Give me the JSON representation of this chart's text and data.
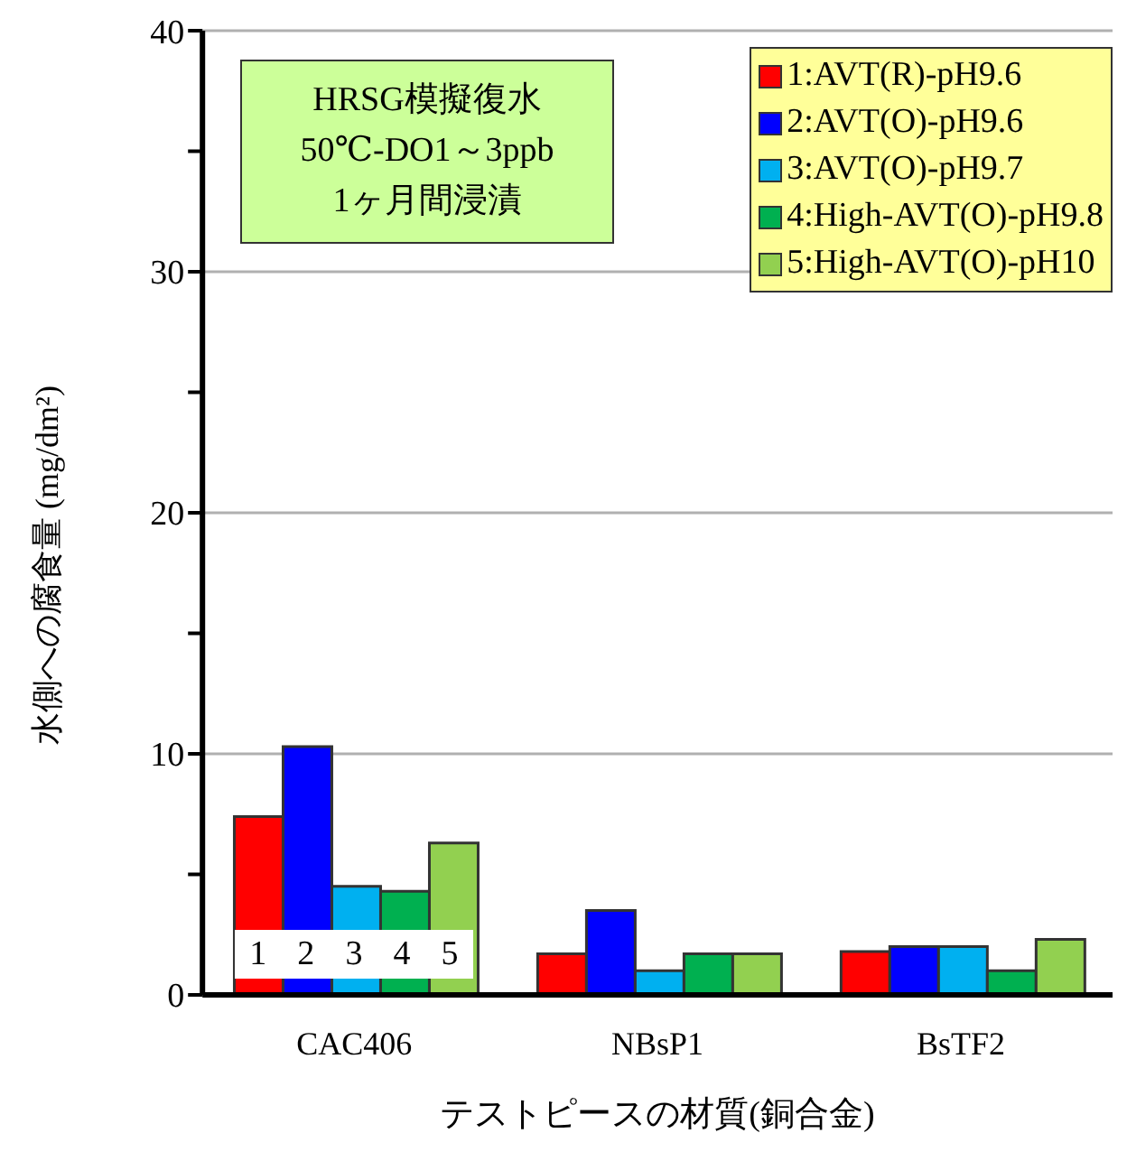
{
  "chart_data": {
    "type": "bar",
    "xlabel": "テストピースの材質(銅合金)",
    "ylabel": "水側への腐食量 (mg/dm²)",
    "categories": [
      "CAC406",
      "NBsP1",
      "BsTF2"
    ],
    "series": [
      {
        "name": "1:AVT(R)-pH9.6",
        "color": "#ff0000",
        "values": [
          7.4,
          1.7,
          1.8
        ]
      },
      {
        "name": "2:AVT(O)-pH9.6",
        "color": "#0000ff",
        "values": [
          10.3,
          3.5,
          2.0
        ]
      },
      {
        "name": "3:AVT(O)-pH9.7",
        "color": "#00b0f0",
        "values": [
          4.5,
          1.0,
          2.0
        ]
      },
      {
        "name": "4:High-AVT(O)-pH9.8",
        "color": "#00b050",
        "values": [
          4.3,
          1.7,
          1.0
        ]
      },
      {
        "name": "5:High-AVT(O)-pH10",
        "color": "#92d050",
        "values": [
          6.3,
          1.7,
          2.3
        ]
      }
    ],
    "ylim": [
      0,
      40
    ],
    "yticks": [
      0,
      {
        "value": 5,
        "label": null
      },
      10,
      {
        "value": 15,
        "label": null
      },
      20,
      {
        "value": 25,
        "label": null
      },
      30,
      {
        "value": 35,
        "label": null
      },
      40
    ],
    "grid": "y",
    "legend": "top right",
    "annotations": [
      "HRSG模擬復水",
      "50℃-DO1～3ppb",
      "1ヶ月間浸漬",
      "1",
      "2",
      "3",
      "4",
      "5"
    ]
  }
}
